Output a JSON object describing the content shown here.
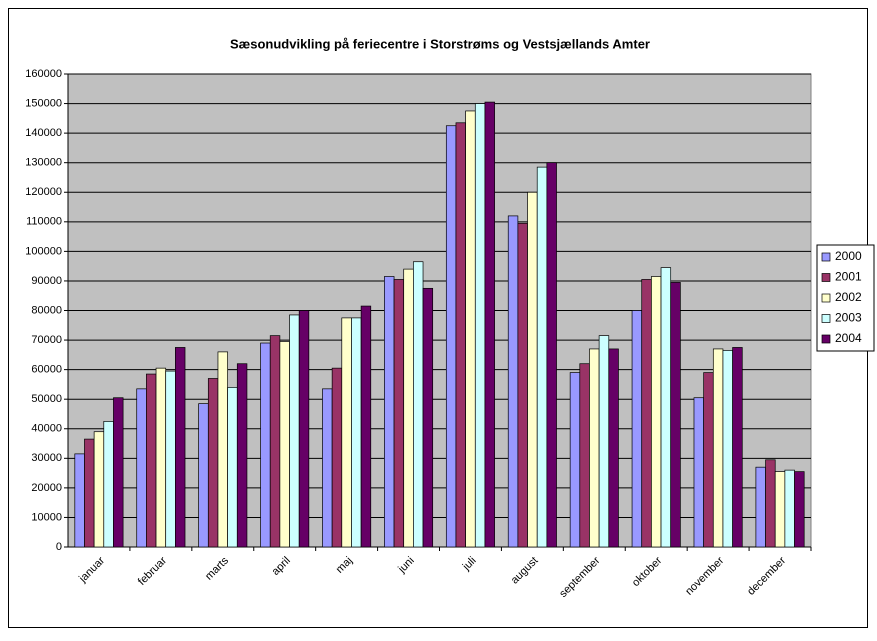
{
  "chart_data": {
    "type": "bar",
    "title": "Sæsonudvikling på feriecentre i Storstrøms og Vestsjællands Amter",
    "categories": [
      "januar",
      "februar",
      "marts",
      "april",
      "maj",
      "juni",
      "juli",
      "august",
      "september",
      "oktober",
      "november",
      "december"
    ],
    "series": [
      {
        "name": "2000",
        "color": "#9999ff",
        "values": [
          31500,
          53500,
          48500,
          69000,
          53500,
          91500,
          142500,
          112000,
          59000,
          80000,
          50500,
          27000
        ]
      },
      {
        "name": "2001",
        "color": "#993366",
        "values": [
          36500,
          58500,
          57000,
          71500,
          60500,
          90500,
          143500,
          109500,
          62000,
          90500,
          59000,
          29500
        ]
      },
      {
        "name": "2002",
        "color": "#ffffcc",
        "values": [
          39000,
          60500,
          66000,
          69500,
          77500,
          94000,
          147500,
          120000,
          67000,
          91500,
          67000,
          25500
        ]
      },
      {
        "name": "2003",
        "color": "#ccffff",
        "values": [
          42500,
          59500,
          54000,
          78500,
          77500,
          96500,
          150000,
          128500,
          71500,
          94500,
          66500,
          26000
        ]
      },
      {
        "name": "2004",
        "color": "#660066",
        "values": [
          50500,
          67500,
          62000,
          80000,
          81500,
          87500,
          150500,
          130000,
          67000,
          89500,
          67500,
          25500
        ]
      }
    ],
    "ylim": [
      0,
      160000
    ],
    "yticks": [
      0,
      10000,
      20000,
      30000,
      40000,
      50000,
      60000,
      70000,
      80000,
      90000,
      100000,
      110000,
      120000,
      130000,
      140000,
      150000,
      160000
    ],
    "grid": true,
    "plot_background": "#c0c0c0",
    "legend": "right"
  }
}
